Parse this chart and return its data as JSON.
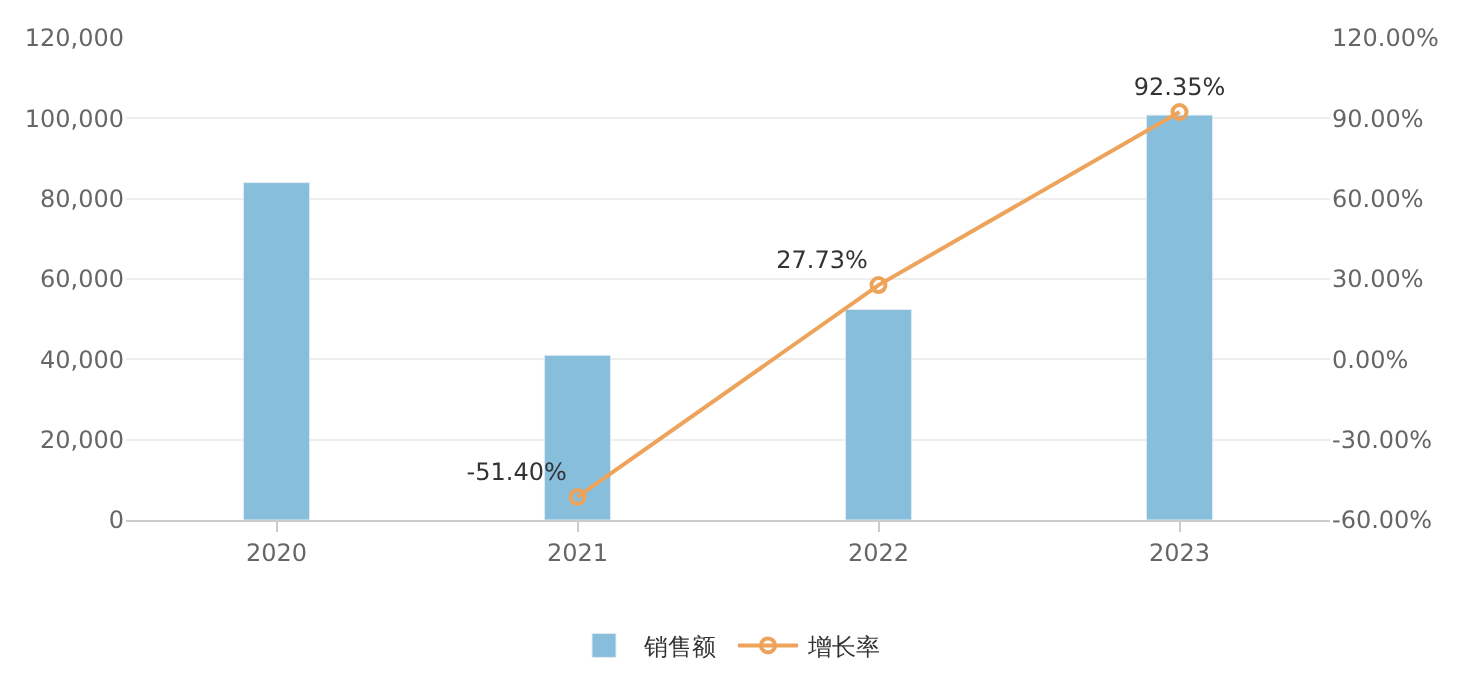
{
  "chart_data": {
    "type": "bar",
    "categories": [
      "2020",
      "2021",
      "2022",
      "2023"
    ],
    "series": [
      {
        "name": "销售额",
        "color": "#86bedb",
        "values": [
          84000,
          41000,
          52400,
          100800
        ]
      },
      {
        "name": "增长率",
        "type": "line",
        "axis": "y2",
        "color": "#eda35a",
        "marker": "circle",
        "values": [
          null,
          -51.4,
          27.73,
          92.35
        ],
        "value_labels": [
          null,
          "-51.40%",
          "27.73%",
          "92.35%"
        ]
      }
    ],
    "ylim": [
      0,
      120000
    ],
    "yticks": [
      {
        "value": 0,
        "label": "0"
      },
      {
        "value": 20000,
        "label": "20,000"
      },
      {
        "value": 40000,
        "label": "40,000"
      },
      {
        "value": 60000,
        "label": "60,000"
      },
      {
        "value": 80000,
        "label": "80,000"
      },
      {
        "value": 100000,
        "label": "100,000"
      },
      {
        "value": 120000,
        "label": "120,000"
      }
    ],
    "y2lim": [
      -60,
      120
    ],
    "y2ticks": [
      {
        "value": -60,
        "label": "-60.00%"
      },
      {
        "value": -30,
        "label": "-30.00%"
      },
      {
        "value": 0,
        "label": "0.00%"
      },
      {
        "value": 30,
        "label": "30.00%"
      },
      {
        "value": 60,
        "label": "60.00%"
      },
      {
        "value": 90,
        "label": "90.00%"
      },
      {
        "value": 120,
        "label": "120.00%"
      }
    ],
    "grid": "y",
    "legend": "bottom"
  }
}
